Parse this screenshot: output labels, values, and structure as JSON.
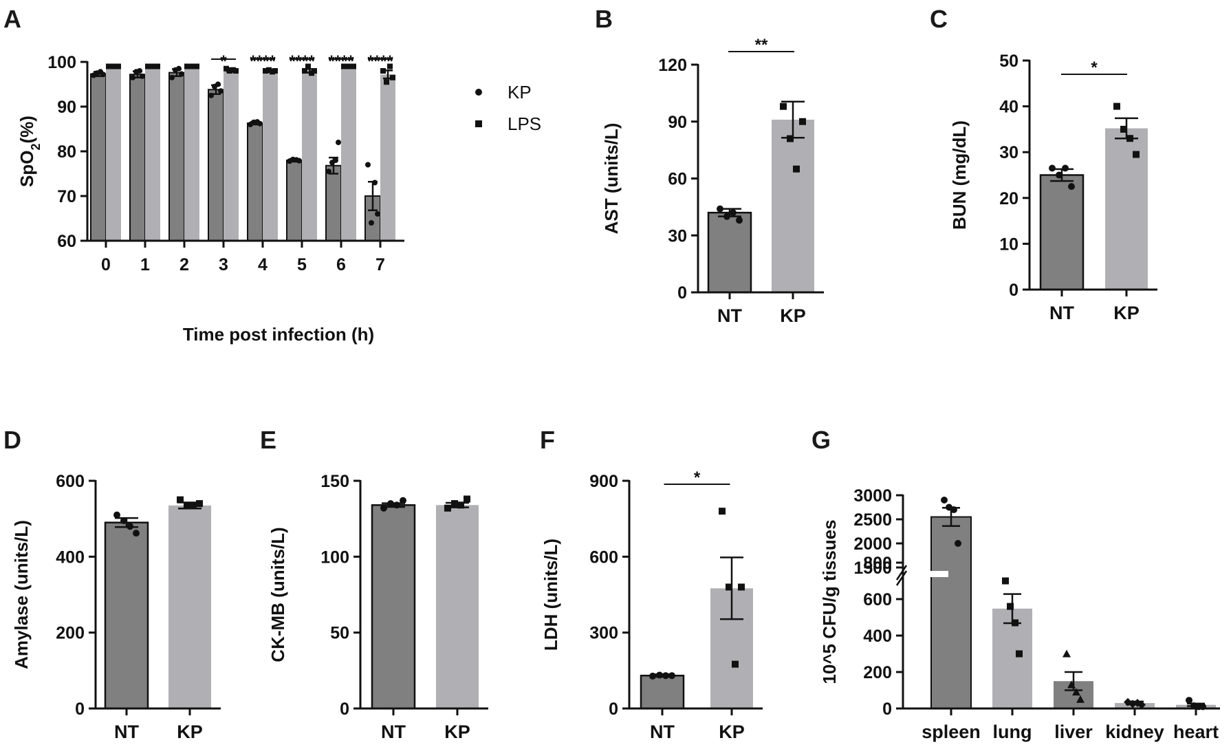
{
  "panel_letters": [
    "A",
    "B",
    "C",
    "D",
    "E",
    "F",
    "G"
  ],
  "colors": {
    "dark_bar": "#808080",
    "light_bar": "#b0b0b4",
    "ink": "#111111"
  },
  "chart_data": [
    {
      "id": "A",
      "type": "bar",
      "title": "",
      "xlabel": "Time post infection (h)",
      "ylabel_main": "SpO",
      "ylabel_sub": "2",
      "ylabel_tail": "(%)",
      "ylim": [
        60,
        100
      ],
      "yticks": [
        "60",
        "70",
        "80",
        "90",
        "100"
      ],
      "categories": [
        "0",
        "1",
        "2",
        "3",
        "4",
        "5",
        "6",
        "7"
      ],
      "series": [
        {
          "name": "KP",
          "marker": "circle",
          "values": [
            97.3,
            97.2,
            97.6,
            93.8,
            86.3,
            78.0,
            76.8,
            70.0
          ],
          "errors": [
            0.5,
            0.7,
            0.8,
            1.0,
            0.3,
            0.3,
            1.8,
            3.2
          ],
          "points": [
            [
              97.0,
              97.5,
              97.8,
              97.2
            ],
            [
              96.5,
              97.8,
              98.0,
              96.8
            ],
            [
              96.5,
              98.2,
              98.5,
              97.3
            ],
            [
              92.5,
              94.5,
              95.0,
              93.5
            ],
            [
              86.0,
              86.5,
              86.6,
              86.2
            ],
            [
              77.8,
              78.2,
              78.1,
              77.9
            ],
            [
              75.5,
              77.5,
              78.0,
              82.0
            ],
            [
              77.0,
              64.0,
              73.0,
              66.0
            ]
          ]
        },
        {
          "name": "LPS",
          "marker": "square",
          "values": [
            99.0,
            99.0,
            99.0,
            98.2,
            98.0,
            98.0,
            99.0,
            97.2
          ],
          "errors": [
            0.1,
            0.1,
            0.1,
            0.4,
            0.3,
            0.4,
            0.2,
            0.9
          ],
          "points": [
            [
              99.0,
              99.0,
              99.0,
              99.0
            ],
            [
              99.0,
              99.0,
              99.0,
              99.0
            ],
            [
              99.0,
              99.0,
              99.0,
              99.0
            ],
            [
              98.5,
              98.0,
              98.2,
              98.0
            ],
            [
              98.0,
              98.2,
              97.8,
              98.0
            ],
            [
              98.0,
              99.0,
              97.5,
              98.0
            ],
            [
              99.0,
              99.0,
              99.0,
              99.0
            ],
            [
              98.0,
              95.5,
              99.0,
              96.5
            ]
          ]
        }
      ],
      "significance": [
        "",
        "",
        "",
        "*",
        "****",
        "****",
        "****",
        "****"
      ],
      "legend": [
        {
          "label": "KP",
          "marker": "circle"
        },
        {
          "label": "LPS",
          "marker": "square"
        }
      ]
    },
    {
      "id": "B",
      "type": "bar",
      "ylabel": "AST (units/L)",
      "ylim": [
        0,
        120
      ],
      "yticks": [
        "0",
        "30",
        "60",
        "90",
        "120"
      ],
      "categories": [
        "NT",
        "KP"
      ],
      "values": [
        42,
        91
      ],
      "errors": [
        2,
        9.5
      ],
      "points": [
        [
          44,
          40,
          42,
          38
        ],
        [
          98,
          81,
          65,
          90
        ]
      ],
      "significance": "**"
    },
    {
      "id": "C",
      "type": "bar",
      "ylabel": "BUN (mg/dL)",
      "ylim": [
        0,
        50
      ],
      "yticks": [
        "0",
        "10",
        "20",
        "30",
        "40",
        "50"
      ],
      "categories": [
        "NT",
        "KP"
      ],
      "values": [
        25,
        35.2
      ],
      "errors": [
        1.3,
        2.2
      ],
      "points": [
        [
          26.5,
          25.0,
          26.5,
          22.5
        ],
        [
          40,
          35,
          33,
          29.5
        ]
      ],
      "significance": "*"
    },
    {
      "id": "D",
      "type": "bar",
      "ylabel": "Amylase (units/L)",
      "ylim": [
        0,
        600
      ],
      "yticks": [
        "0",
        "200",
        "400",
        "600"
      ],
      "categories": [
        "NT",
        "KP"
      ],
      "values": [
        490,
        535
      ],
      "errors": [
        12,
        8
      ],
      "points": [
        [
          510,
          495,
          480,
          462
        ],
        [
          550,
          535,
          535,
          540
        ]
      ],
      "significance": ""
    },
    {
      "id": "E",
      "type": "bar",
      "ylabel": "CK-MB (units/L)",
      "ylim": [
        0,
        150
      ],
      "yticks": [
        "0",
        "50",
        "100",
        "150"
      ],
      "categories": [
        "NT",
        "KP"
      ],
      "values": [
        134,
        134
      ],
      "errors": [
        1.2,
        1.5
      ],
      "points": [
        [
          132,
          135,
          134,
          137
        ],
        [
          132,
          135,
          134,
          138
        ]
      ],
      "significance": ""
    },
    {
      "id": "F",
      "type": "bar",
      "ylabel": "LDH (units/L)",
      "ylim": [
        0,
        900
      ],
      "yticks": [
        "0",
        "300",
        "600",
        "900"
      ],
      "categories": [
        "NT",
        "KP"
      ],
      "values": [
        130,
        475
      ],
      "errors": [
        5,
        122
      ],
      "points": [
        [
          128,
          132,
          130,
          130
        ],
        [
          780,
          480,
          175,
          480
        ]
      ],
      "significance": "*"
    },
    {
      "id": "G",
      "type": "bar",
      "ylabel": "10^5 CFU/g tissues",
      "ylim_lower": [
        0,
        800
      ],
      "ylim_upper": [
        1500,
        3000
      ],
      "yticks_lower": [
        "0",
        "200",
        "400",
        "600",
        "800"
      ],
      "yticks_upper": [
        "1500",
        "2000",
        "2500",
        "3000"
      ],
      "categories": [
        "spleen",
        "lung",
        "liver",
        "kidney",
        "heart"
      ],
      "values": [
        2550,
        548,
        150,
        30,
        20
      ],
      "errors": [
        190,
        80,
        50,
        8,
        7
      ],
      "points": [
        [
          2900,
          2750,
          2700,
          2000
        ],
        [
          700,
          560,
          470,
          300
        ],
        [
          300,
          130,
          90,
          50
        ],
        [
          35,
          25,
          30,
          20
        ],
        [
          45,
          15,
          10,
          10
        ]
      ],
      "markers": [
        "circle",
        "square",
        "triangle",
        "diamond",
        "circle"
      ]
    }
  ]
}
